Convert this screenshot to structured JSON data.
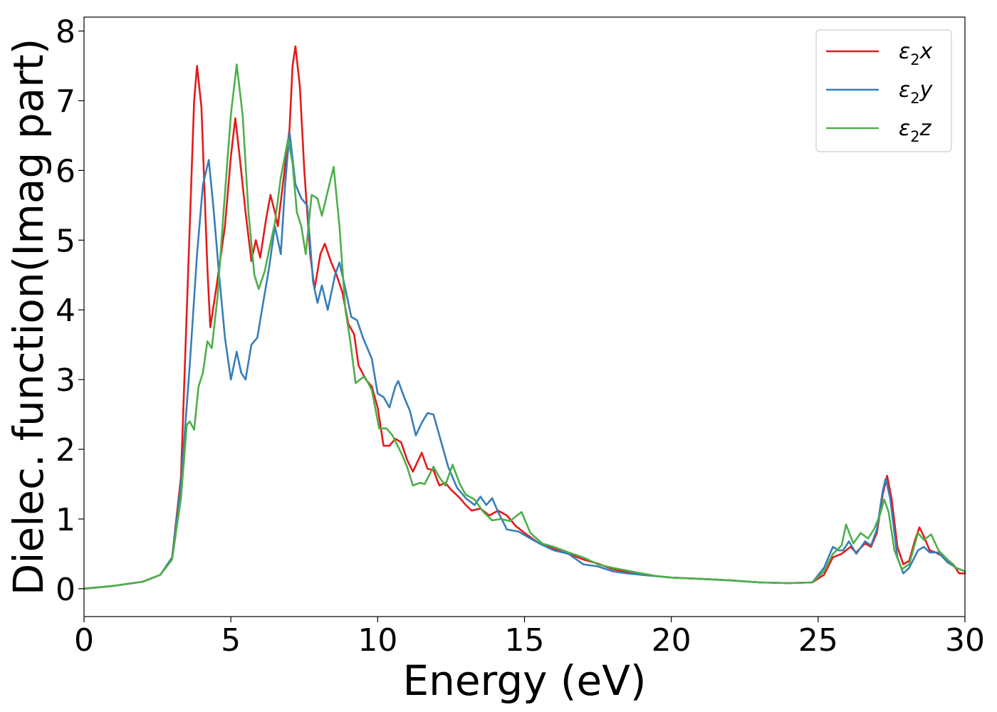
{
  "chart_data": {
    "type": "line",
    "xlabel": "Energy (eV)",
    "ylabel": "Dielec. function(Imag part)",
    "xlim": [
      0,
      30
    ],
    "ylim": [
      -0.4,
      8.2
    ],
    "xticks": [
      0,
      5,
      10,
      15,
      20,
      25,
      30
    ],
    "yticks": [
      0,
      1,
      2,
      3,
      4,
      5,
      6,
      7,
      8
    ],
    "xtick_labels": [
      "0",
      "5",
      "10",
      "15",
      "20",
      "25",
      "30"
    ],
    "ytick_labels": [
      "0",
      "1",
      "2",
      "3",
      "4",
      "5",
      "6",
      "7",
      "8"
    ],
    "grid": false,
    "legend_position": "top-right",
    "series": [
      {
        "name": "ε₂x",
        "label_base": "ε",
        "label_sub": "2",
        "label_tail": "x",
        "color": "#e41a1c",
        "points": [
          [
            0,
            0
          ],
          [
            1,
            0.04
          ],
          [
            2,
            0.1
          ],
          [
            2.6,
            0.2
          ],
          [
            3.0,
            0.45
          ],
          [
            3.3,
            1.6
          ],
          [
            3.55,
            4.6
          ],
          [
            3.75,
            7.0
          ],
          [
            3.85,
            7.5
          ],
          [
            4.0,
            6.9
          ],
          [
            4.2,
            4.6
          ],
          [
            4.3,
            3.75
          ],
          [
            4.5,
            4.3
          ],
          [
            4.8,
            5.2
          ],
          [
            5.0,
            6.2
          ],
          [
            5.15,
            6.75
          ],
          [
            5.3,
            6.2
          ],
          [
            5.5,
            5.4
          ],
          [
            5.7,
            4.7
          ],
          [
            5.85,
            5.0
          ],
          [
            6.0,
            4.75
          ],
          [
            6.2,
            5.3
          ],
          [
            6.35,
            5.65
          ],
          [
            6.5,
            5.4
          ],
          [
            6.6,
            5.2
          ],
          [
            6.8,
            5.9
          ],
          [
            7.0,
            6.6
          ],
          [
            7.1,
            7.5
          ],
          [
            7.2,
            7.78
          ],
          [
            7.35,
            7.2
          ],
          [
            7.5,
            6.0
          ],
          [
            7.7,
            4.8
          ],
          [
            7.85,
            4.3
          ],
          [
            8.05,
            4.8
          ],
          [
            8.2,
            4.95
          ],
          [
            8.4,
            4.7
          ],
          [
            8.6,
            4.5
          ],
          [
            8.8,
            4.25
          ],
          [
            9.0,
            3.8
          ],
          [
            9.2,
            3.65
          ],
          [
            9.35,
            3.2
          ],
          [
            9.6,
            3.0
          ],
          [
            9.8,
            2.9
          ],
          [
            10.0,
            2.6
          ],
          [
            10.2,
            2.05
          ],
          [
            10.4,
            2.05
          ],
          [
            10.6,
            2.15
          ],
          [
            10.8,
            2.1
          ],
          [
            11.0,
            1.85
          ],
          [
            11.2,
            1.68
          ],
          [
            11.5,
            1.95
          ],
          [
            11.7,
            1.72
          ],
          [
            11.9,
            1.7
          ],
          [
            12.1,
            1.48
          ],
          [
            12.3,
            1.52
          ],
          [
            12.5,
            1.42
          ],
          [
            12.8,
            1.3
          ],
          [
            13.0,
            1.2
          ],
          [
            13.2,
            1.12
          ],
          [
            13.5,
            1.15
          ],
          [
            13.8,
            1.05
          ],
          [
            14.1,
            1.12
          ],
          [
            14.4,
            1.05
          ],
          [
            14.7,
            0.9
          ],
          [
            15.0,
            0.8
          ],
          [
            15.5,
            0.65
          ],
          [
            16,
            0.57
          ],
          [
            16.5,
            0.5
          ],
          [
            17,
            0.42
          ],
          [
            17.5,
            0.36
          ],
          [
            18,
            0.28
          ],
          [
            18.5,
            0.24
          ],
          [
            19,
            0.2
          ],
          [
            19.5,
            0.18
          ],
          [
            20,
            0.16
          ],
          [
            21,
            0.14
          ],
          [
            22,
            0.12
          ],
          [
            23,
            0.09
          ],
          [
            24,
            0.08
          ],
          [
            24.8,
            0.09
          ],
          [
            25.2,
            0.2
          ],
          [
            25.5,
            0.45
          ],
          [
            25.8,
            0.5
          ],
          [
            26.1,
            0.6
          ],
          [
            26.3,
            0.52
          ],
          [
            26.6,
            0.65
          ],
          [
            26.8,
            0.6
          ],
          [
            27.0,
            0.8
          ],
          [
            27.2,
            1.35
          ],
          [
            27.35,
            1.62
          ],
          [
            27.5,
            1.3
          ],
          [
            27.7,
            0.6
          ],
          [
            27.9,
            0.35
          ],
          [
            28.1,
            0.4
          ],
          [
            28.3,
            0.7
          ],
          [
            28.45,
            0.88
          ],
          [
            28.6,
            0.75
          ],
          [
            28.8,
            0.55
          ],
          [
            29.0,
            0.52
          ],
          [
            29.3,
            0.45
          ],
          [
            29.6,
            0.35
          ],
          [
            29.8,
            0.22
          ],
          [
            30,
            0.22
          ]
        ]
      },
      {
        "name": "ε₂y",
        "label_base": "ε",
        "label_sub": "2",
        "label_tail": "y",
        "color": "#377eb8",
        "points": [
          [
            0,
            0
          ],
          [
            1,
            0.04
          ],
          [
            2,
            0.1
          ],
          [
            2.6,
            0.2
          ],
          [
            3.0,
            0.45
          ],
          [
            3.3,
            1.5
          ],
          [
            3.6,
            3.2
          ],
          [
            3.85,
            4.8
          ],
          [
            4.05,
            5.8
          ],
          [
            4.25,
            6.15
          ],
          [
            4.4,
            5.5
          ],
          [
            4.6,
            4.5
          ],
          [
            4.8,
            3.6
          ],
          [
            5.0,
            3.0
          ],
          [
            5.2,
            3.4
          ],
          [
            5.35,
            3.1
          ],
          [
            5.5,
            3.0
          ],
          [
            5.7,
            3.5
          ],
          [
            5.9,
            3.6
          ],
          [
            6.1,
            4.1
          ],
          [
            6.3,
            4.6
          ],
          [
            6.5,
            5.2
          ],
          [
            6.7,
            4.8
          ],
          [
            6.85,
            5.8
          ],
          [
            7.0,
            6.55
          ],
          [
            7.2,
            5.8
          ],
          [
            7.4,
            5.6
          ],
          [
            7.6,
            5.5
          ],
          [
            7.8,
            4.4
          ],
          [
            7.95,
            4.1
          ],
          [
            8.1,
            4.35
          ],
          [
            8.3,
            4.0
          ],
          [
            8.55,
            4.5
          ],
          [
            8.7,
            4.68
          ],
          [
            8.9,
            4.3
          ],
          [
            9.1,
            3.9
          ],
          [
            9.3,
            3.85
          ],
          [
            9.5,
            3.6
          ],
          [
            9.8,
            3.3
          ],
          [
            10.0,
            2.8
          ],
          [
            10.2,
            2.75
          ],
          [
            10.4,
            2.6
          ],
          [
            10.6,
            2.9
          ],
          [
            10.7,
            2.98
          ],
          [
            10.9,
            2.75
          ],
          [
            11.1,
            2.55
          ],
          [
            11.3,
            2.2
          ],
          [
            11.5,
            2.38
          ],
          [
            11.7,
            2.52
          ],
          [
            11.9,
            2.5
          ],
          [
            12.1,
            2.2
          ],
          [
            12.4,
            1.75
          ],
          [
            12.7,
            1.45
          ],
          [
            13.0,
            1.3
          ],
          [
            13.3,
            1.2
          ],
          [
            13.5,
            1.32
          ],
          [
            13.7,
            1.2
          ],
          [
            13.9,
            1.3
          ],
          [
            14.1,
            1.1
          ],
          [
            14.4,
            0.85
          ],
          [
            14.8,
            0.82
          ],
          [
            15.2,
            0.72
          ],
          [
            15.6,
            0.63
          ],
          [
            16,
            0.55
          ],
          [
            16.5,
            0.5
          ],
          [
            17,
            0.35
          ],
          [
            17.5,
            0.32
          ],
          [
            18,
            0.25
          ],
          [
            18.5,
            0.22
          ],
          [
            19,
            0.2
          ],
          [
            19.5,
            0.18
          ],
          [
            20,
            0.16
          ],
          [
            21,
            0.14
          ],
          [
            22,
            0.12
          ],
          [
            23,
            0.09
          ],
          [
            24,
            0.08
          ],
          [
            24.8,
            0.09
          ],
          [
            25.2,
            0.3
          ],
          [
            25.5,
            0.6
          ],
          [
            25.7,
            0.55
          ],
          [
            25.85,
            0.55
          ],
          [
            26.05,
            0.68
          ],
          [
            26.3,
            0.5
          ],
          [
            26.6,
            0.68
          ],
          [
            26.8,
            0.62
          ],
          [
            27.0,
            0.85
          ],
          [
            27.2,
            1.4
          ],
          [
            27.3,
            1.58
          ],
          [
            27.45,
            1.3
          ],
          [
            27.7,
            0.45
          ],
          [
            27.9,
            0.22
          ],
          [
            28.1,
            0.3
          ],
          [
            28.4,
            0.55
          ],
          [
            28.6,
            0.6
          ],
          [
            28.8,
            0.52
          ],
          [
            29.1,
            0.52
          ],
          [
            29.4,
            0.38
          ],
          [
            29.7,
            0.3
          ],
          [
            30,
            0.25
          ]
        ]
      },
      {
        "name": "ε₂z",
        "label_base": "ε",
        "label_sub": "2",
        "label_tail": "z",
        "color": "#4daf4a",
        "points": [
          [
            0,
            0
          ],
          [
            1,
            0.04
          ],
          [
            2,
            0.1
          ],
          [
            2.6,
            0.2
          ],
          [
            3.0,
            0.42
          ],
          [
            3.3,
            1.3
          ],
          [
            3.5,
            2.35
          ],
          [
            3.6,
            2.4
          ],
          [
            3.75,
            2.28
          ],
          [
            3.9,
            2.9
          ],
          [
            4.05,
            3.1
          ],
          [
            4.2,
            3.55
          ],
          [
            4.35,
            3.45
          ],
          [
            4.55,
            4.2
          ],
          [
            4.75,
            5.4
          ],
          [
            5.0,
            6.8
          ],
          [
            5.2,
            7.52
          ],
          [
            5.4,
            6.8
          ],
          [
            5.6,
            5.4
          ],
          [
            5.8,
            4.5
          ],
          [
            5.95,
            4.3
          ],
          [
            6.15,
            4.55
          ],
          [
            6.35,
            4.95
          ],
          [
            6.5,
            5.25
          ],
          [
            6.7,
            5.9
          ],
          [
            6.95,
            6.45
          ],
          [
            7.1,
            6.1
          ],
          [
            7.25,
            5.4
          ],
          [
            7.4,
            5.2
          ],
          [
            7.55,
            4.8
          ],
          [
            7.75,
            5.65
          ],
          [
            7.95,
            5.6
          ],
          [
            8.1,
            5.35
          ],
          [
            8.3,
            5.7
          ],
          [
            8.5,
            6.05
          ],
          [
            8.7,
            5.2
          ],
          [
            8.9,
            4.0
          ],
          [
            9.05,
            3.6
          ],
          [
            9.25,
            2.95
          ],
          [
            9.55,
            3.05
          ],
          [
            9.8,
            2.85
          ],
          [
            10.05,
            2.3
          ],
          [
            10.3,
            2.3
          ],
          [
            10.5,
            2.2
          ],
          [
            10.8,
            1.95
          ],
          [
            11.0,
            1.75
          ],
          [
            11.2,
            1.48
          ],
          [
            11.45,
            1.52
          ],
          [
            11.6,
            1.5
          ],
          [
            11.9,
            1.75
          ],
          [
            12.1,
            1.6
          ],
          [
            12.3,
            1.48
          ],
          [
            12.55,
            1.78
          ],
          [
            12.8,
            1.5
          ],
          [
            13.0,
            1.35
          ],
          [
            13.3,
            1.28
          ],
          [
            13.6,
            1.1
          ],
          [
            13.9,
            0.98
          ],
          [
            14.2,
            1.0
          ],
          [
            14.5,
            0.97
          ],
          [
            14.9,
            1.1
          ],
          [
            15.2,
            0.8
          ],
          [
            15.6,
            0.65
          ],
          [
            16,
            0.6
          ],
          [
            16.5,
            0.52
          ],
          [
            17,
            0.45
          ],
          [
            17.5,
            0.35
          ],
          [
            18,
            0.3
          ],
          [
            18.5,
            0.26
          ],
          [
            19,
            0.22
          ],
          [
            19.5,
            0.18
          ],
          [
            20,
            0.16
          ],
          [
            21,
            0.14
          ],
          [
            22,
            0.12
          ],
          [
            23,
            0.09
          ],
          [
            24,
            0.08
          ],
          [
            24.8,
            0.09
          ],
          [
            25.2,
            0.25
          ],
          [
            25.5,
            0.5
          ],
          [
            25.8,
            0.62
          ],
          [
            25.95,
            0.92
          ],
          [
            26.2,
            0.65
          ],
          [
            26.45,
            0.8
          ],
          [
            26.7,
            0.72
          ],
          [
            26.9,
            0.85
          ],
          [
            27.1,
            1.05
          ],
          [
            27.25,
            1.28
          ],
          [
            27.4,
            1.1
          ],
          [
            27.6,
            0.55
          ],
          [
            27.85,
            0.28
          ],
          [
            28.1,
            0.35
          ],
          [
            28.4,
            0.8
          ],
          [
            28.6,
            0.7
          ],
          [
            28.85,
            0.78
          ],
          [
            29.1,
            0.55
          ],
          [
            29.4,
            0.42
          ],
          [
            29.7,
            0.3
          ],
          [
            30,
            0.25
          ]
        ]
      }
    ]
  }
}
